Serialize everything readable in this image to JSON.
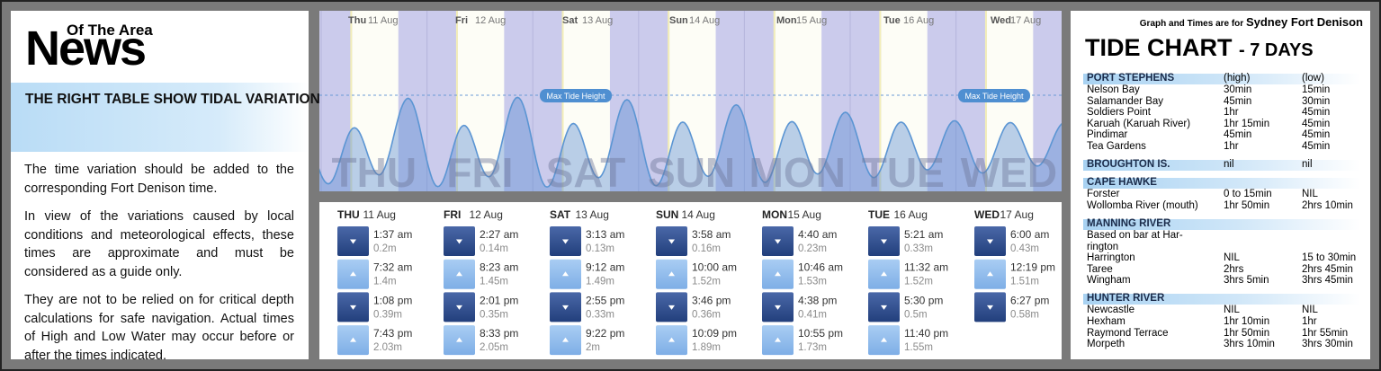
{
  "left": {
    "logo_small": "Of The Area",
    "logo": "News",
    "headline": "THE RIGHT TABLE SHOW TIDAL VARIATIONS AT SEVERAL LOCATIONS",
    "paragraphs": [
      "The time variation should be added to the corresponding Fort Denison time.",
      "In view of the variations caused by local conditions and meteorological effects, these times are approximate and must be considered as a guide only.",
      "They are not to be relied on for critical depth calculations for safe navigation. Actual times of High and Low Water may occur before or after the times indicated."
    ]
  },
  "graph": {
    "max_label": "Max Tide Height",
    "days": [
      {
        "day": "Thu",
        "date": "11 Aug",
        "watermark": "THU"
      },
      {
        "day": "Fri",
        "date": "12 Aug",
        "watermark": "FRI"
      },
      {
        "day": "Sat",
        "date": "13 Aug",
        "watermark": "SAT"
      },
      {
        "day": "Sun",
        "date": "14 Aug",
        "watermark": "SUN"
      },
      {
        "day": "Mon",
        "date": "15 Aug",
        "watermark": "MON"
      },
      {
        "day": "Tue",
        "date": "16 Aug",
        "watermark": "TUE"
      },
      {
        "day": "Wed",
        "date": "17 Aug",
        "watermark": "WED"
      }
    ]
  },
  "tides": [
    {
      "day": "THU",
      "date": "11 Aug",
      "entries": [
        {
          "time": "1:37 am",
          "height": "0.2m"
        },
        {
          "time": "7:32 am",
          "height": "1.4m"
        },
        {
          "time": "1:08 pm",
          "height": "0.39m"
        },
        {
          "time": "7:43 pm",
          "height": "2.03m"
        }
      ]
    },
    {
      "day": "FRI",
      "date": "12 Aug",
      "entries": [
        {
          "time": "2:27 am",
          "height": "0.14m"
        },
        {
          "time": "8:23 am",
          "height": "1.45m"
        },
        {
          "time": "2:01 pm",
          "height": "0.35m"
        },
        {
          "time": "8:33 pm",
          "height": "2.05m"
        }
      ]
    },
    {
      "day": "SAT",
      "date": "13 Aug",
      "entries": [
        {
          "time": "3:13 am",
          "height": "0.13m"
        },
        {
          "time": "9:12 am",
          "height": "1.49m"
        },
        {
          "time": "2:55 pm",
          "height": "0.33m"
        },
        {
          "time": "9:22 pm",
          "height": "2m"
        }
      ]
    },
    {
      "day": "SUN",
      "date": "14 Aug",
      "entries": [
        {
          "time": "3:58 am",
          "height": "0.16m"
        },
        {
          "time": "10:00 am",
          "height": "1.52m"
        },
        {
          "time": "3:46 pm",
          "height": "0.36m"
        },
        {
          "time": "10:09 pm",
          "height": "1.89m"
        }
      ]
    },
    {
      "day": "MON",
      "date": "15 Aug",
      "entries": [
        {
          "time": "4:40 am",
          "height": "0.23m"
        },
        {
          "time": "10:46 am",
          "height": "1.53m"
        },
        {
          "time": "4:38 pm",
          "height": "0.41m"
        },
        {
          "time": "10:55 pm",
          "height": "1.73m"
        }
      ]
    },
    {
      "day": "TUE",
      "date": "16 Aug",
      "entries": [
        {
          "time": "5:21 am",
          "height": "0.33m"
        },
        {
          "time": "11:32 am",
          "height": "1.52m"
        },
        {
          "time": "5:30 pm",
          "height": "0.5m"
        },
        {
          "time": "11:40 pm",
          "height": "1.55m"
        }
      ]
    },
    {
      "day": "WED",
      "date": "17 Aug",
      "entries": [
        {
          "time": "6:00 am",
          "height": "0.43m"
        },
        {
          "time": "12:19 pm",
          "height": "1.51m"
        },
        {
          "time": "6:27 pm",
          "height": "0.58m"
        }
      ]
    }
  ],
  "right": {
    "note": "Graph and Times are for",
    "place": "Sydney Fort Denison",
    "title": "TIDE CHART",
    "title_suffix": "- 7 DAYS",
    "sections": [
      {
        "name": "PORT STEPHENS",
        "high": "(high)",
        "low": "(low)",
        "rows": [
          [
            "Nelson Bay",
            "30min",
            "15min"
          ],
          [
            "Salamander Bay",
            "45min",
            "30min"
          ],
          [
            "Soldiers Point",
            "1hr",
            "45min"
          ],
          [
            "Karuah (Karuah River)",
            "1hr 15min",
            "45min"
          ],
          [
            "Pindimar",
            "45min",
            "45min"
          ],
          [
            "Tea Gardens",
            "1hr",
            "45min"
          ]
        ]
      },
      {
        "name": "BROUGHTON IS.",
        "high": "nil",
        "low": "nil",
        "rows": []
      },
      {
        "name": "CAPE HAWKE",
        "rows": [
          [
            "Forster",
            "0 to 15min",
            "NIL"
          ],
          [
            "Wollomba River (mouth)",
            "1hr 50min",
            "2hrs 10min"
          ]
        ]
      },
      {
        "name": "MANNING RIVER",
        "rows": [
          [
            "Based on bar at Har-"
          ],
          [
            "rington"
          ],
          [
            "Harrington",
            "NIL",
            "15 to 30min"
          ],
          [
            "Taree",
            "2hrs",
            "2hrs 45min"
          ],
          [
            "Wingham",
            "3hrs 5min",
            "3hrs 45min"
          ]
        ]
      },
      {
        "name": "HUNTER RIVER",
        "rows": [
          [
            "Newcastle",
            "NIL",
            "NIL"
          ],
          [
            "Hexham",
            "1hr 10min",
            "1hr"
          ],
          [
            "Raymond Terrace",
            "1hr 50min",
            "1hr 55min"
          ],
          [
            "Morpeth",
            "3hrs 10min",
            "3hrs 30min"
          ]
        ]
      }
    ]
  }
}
